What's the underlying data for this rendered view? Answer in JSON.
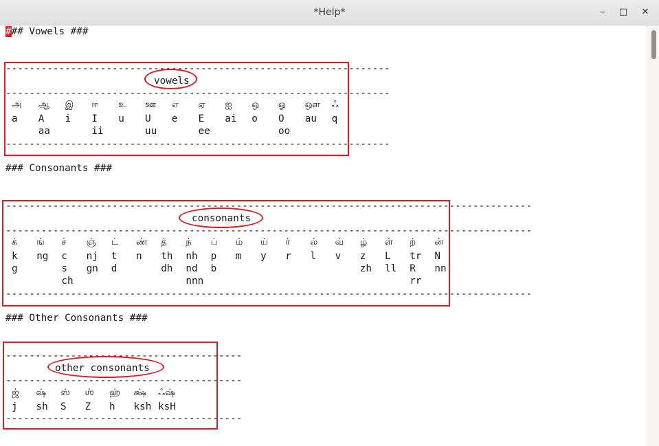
{
  "window": {
    "title": "*Help*",
    "buttons": {
      "minimize": "‒",
      "maximize": "□",
      "close": "✕"
    }
  },
  "editor": {
    "headings": {
      "vowels": "## Vowels ###",
      "cursor_char": "#",
      "consonants": "### Consonants ###",
      "other_consonants": "### Other Consonants ###"
    },
    "dash_lines": {
      "vowels": "-----------------------------------------------------------------",
      "consonants": "-----------------------------------------------------------------------------------------",
      "other": "----------------------------------------"
    },
    "section_labels": {
      "vowels": "vowels",
      "consonants": "consonants",
      "other": "other consonants"
    },
    "vowels": [
      {
        "ta": "அ",
        "r1": "a",
        "r2": ""
      },
      {
        "ta": "ஆ",
        "r1": "A",
        "r2": "aa"
      },
      {
        "ta": "இ",
        "r1": "i",
        "r2": ""
      },
      {
        "ta": "ஈ",
        "r1": "I",
        "r2": "ii"
      },
      {
        "ta": "உ",
        "r1": "u",
        "r2": ""
      },
      {
        "ta": "ஊ",
        "r1": "U",
        "r2": "uu"
      },
      {
        "ta": "எ",
        "r1": "e",
        "r2": ""
      },
      {
        "ta": "ஏ",
        "r1": "E",
        "r2": "ee"
      },
      {
        "ta": "ஐ",
        "r1": "ai",
        "r2": ""
      },
      {
        "ta": "ஒ",
        "r1": "o",
        "r2": ""
      },
      {
        "ta": "ஓ",
        "r1": "O",
        "r2": "oo"
      },
      {
        "ta": "ஔ",
        "r1": "au",
        "r2": ""
      },
      {
        "ta": "ஃ",
        "r1": "q",
        "r2": ""
      }
    ],
    "consonants": [
      {
        "ta": "க்",
        "r1": "k",
        "r2": "g",
        "r3": ""
      },
      {
        "ta": "ங்",
        "r1": "ng",
        "r2": "",
        "r3": ""
      },
      {
        "ta": "ச்",
        "r1": "c",
        "r2": "s",
        "r3": "ch"
      },
      {
        "ta": "ஞ்",
        "r1": "nj",
        "r2": "gn",
        "r3": ""
      },
      {
        "ta": "ட்",
        "r1": "t",
        "r2": "d",
        "r3": ""
      },
      {
        "ta": "ண்",
        "r1": "n",
        "r2": "",
        "r3": ""
      },
      {
        "ta": "த்",
        "r1": "th",
        "r2": "dh",
        "r3": ""
      },
      {
        "ta": "ந்",
        "r1": "nh",
        "r2": "nd",
        "r3": "nnn"
      },
      {
        "ta": "ப்",
        "r1": "p",
        "r2": "b",
        "r3": ""
      },
      {
        "ta": "ம்",
        "r1": "m",
        "r2": "",
        "r3": ""
      },
      {
        "ta": "ய்",
        "r1": "y",
        "r2": "",
        "r3": ""
      },
      {
        "ta": "ர்",
        "r1": "r",
        "r2": "",
        "r3": ""
      },
      {
        "ta": "ல்",
        "r1": "l",
        "r2": "",
        "r3": ""
      },
      {
        "ta": "வ்",
        "r1": "v",
        "r2": "",
        "r3": ""
      },
      {
        "ta": "ழ்",
        "r1": "z",
        "r2": "zh",
        "r3": ""
      },
      {
        "ta": "ள்",
        "r1": "L",
        "r2": "ll",
        "r3": ""
      },
      {
        "ta": "ற்",
        "r1": "tr",
        "r2": "R",
        "r3": "rr"
      },
      {
        "ta": "ன்",
        "r1": "N",
        "r2": "nn",
        "r3": ""
      }
    ],
    "other_consonants": [
      {
        "ta": "ஜ்",
        "r1": "j"
      },
      {
        "ta": "ஷ்",
        "r1": "sh"
      },
      {
        "ta": "ஸ்",
        "r1": "S"
      },
      {
        "ta": "ஶ்",
        "r1": "Z"
      },
      {
        "ta": "ஹ்",
        "r1": "h"
      },
      {
        "ta": "க்ஷ்",
        "r1": "ksh"
      },
      {
        "ta": "ஃஷ்",
        "r1": "ksH"
      }
    ]
  }
}
